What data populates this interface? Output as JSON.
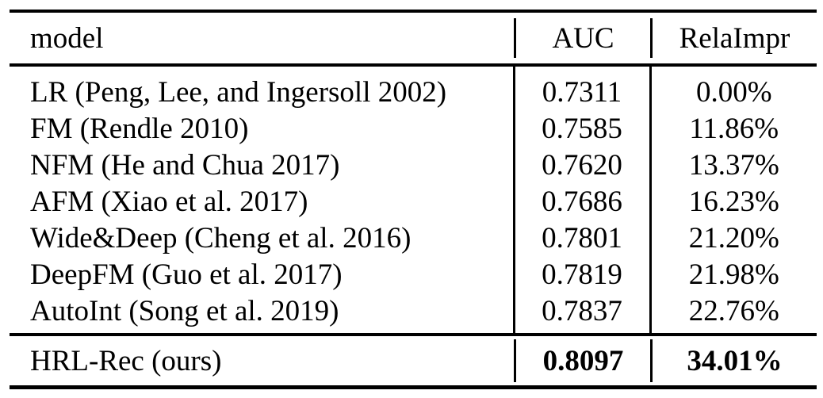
{
  "colors": {
    "text": "#000000",
    "rule": "#000000",
    "background": "#ffffff"
  },
  "table": {
    "header": {
      "model": "model",
      "auc": "AUC",
      "relaimpr": "RelaImpr"
    },
    "rows": [
      {
        "model": "LR (Peng, Lee, and Ingersoll 2002)",
        "auc": "0.7311",
        "relaimpr": "0.00%"
      },
      {
        "model": "FM (Rendle 2010)",
        "auc": "0.7585",
        "relaimpr": "11.86%"
      },
      {
        "model": "NFM (He and Chua 2017)",
        "auc": "0.7620",
        "relaimpr": "13.37%"
      },
      {
        "model": "AFM (Xiao et al. 2017)",
        "auc": "0.7686",
        "relaimpr": "16.23%"
      },
      {
        "model": "Wide&Deep (Cheng et al. 2016)",
        "auc": "0.7801",
        "relaimpr": "21.20%"
      },
      {
        "model": "DeepFM (Guo et al. 2017)",
        "auc": "0.7819",
        "relaimpr": "21.98%"
      },
      {
        "model": "AutoInt (Song et al. 2019)",
        "auc": "0.7837",
        "relaimpr": "22.76%"
      }
    ],
    "footer": {
      "model": "HRL-Rec (ours)",
      "auc": "0.8097",
      "relaimpr": "34.01%"
    }
  }
}
